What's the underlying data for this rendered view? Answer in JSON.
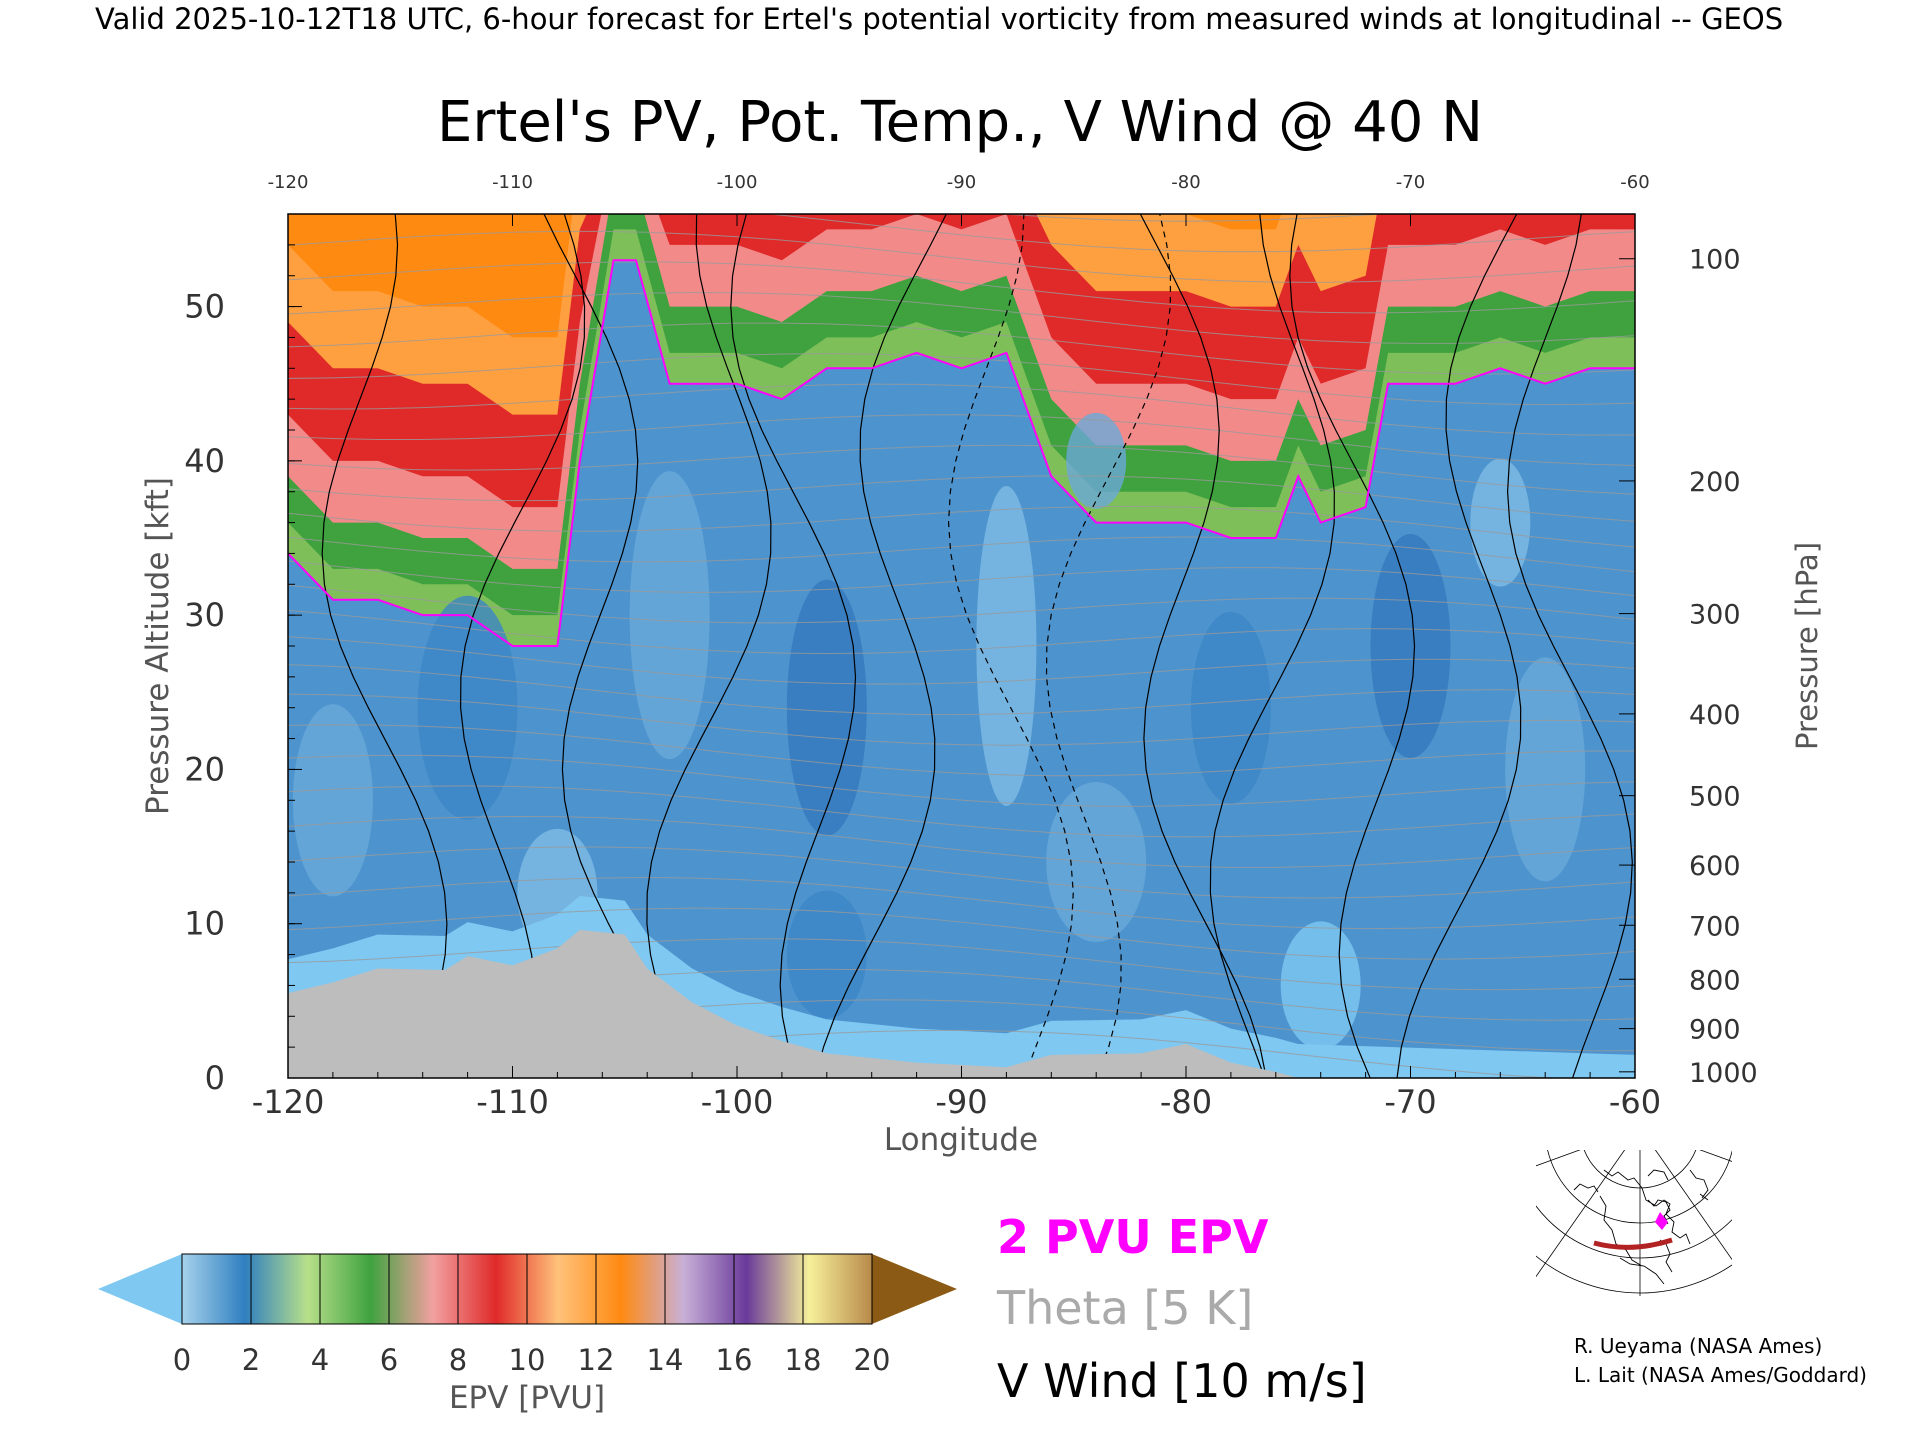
{
  "header": {
    "valid_line": "Valid 2025-10-12T18 UTC, 6-hour forecast for Ertel's potential vorticity from measured winds at longitudinal -- GEOS"
  },
  "chart_data": {
    "type": "heatmap",
    "title": "Ertel's PV, Pot. Temp., V Wind @ 40 N",
    "xlabel": "Longitude",
    "ylabel_left": "Pressure Altitude [kft]",
    "ylabel_right": "Pressure [hPa]",
    "xlim": [
      -120,
      -60
    ],
    "ylim": [
      0,
      56
    ],
    "x_ticks": [
      "-120",
      "-110",
      "-100",
      "-90",
      "-80",
      "-70",
      "-60"
    ],
    "x_ticks_top": [
      "-120",
      "-110",
      "-100",
      "-90",
      "-80",
      "-70",
      "-60"
    ],
    "y_ticks": [
      "0",
      "10",
      "20",
      "30",
      "40",
      "50"
    ],
    "pressure_ticks": [
      {
        "p": 1000,
        "kft": 0.4
      },
      {
        "p": 900,
        "kft": 3.2
      },
      {
        "p": 800,
        "kft": 6.4
      },
      {
        "p": 700,
        "kft": 9.9
      },
      {
        "p": 600,
        "kft": 13.8
      },
      {
        "p": 500,
        "kft": 18.3
      },
      {
        "p": 400,
        "kft": 23.6
      },
      {
        "p": 300,
        "kft": 30.1
      },
      {
        "p": 200,
        "kft": 38.7
      },
      {
        "p": 100,
        "kft": 53.1
      }
    ],
    "grid": false,
    "tropopause_2pvu_kft": [
      {
        "lon": -120,
        "kft": 34
      },
      {
        "lon": -118,
        "kft": 31
      },
      {
        "lon": -116,
        "kft": 31
      },
      {
        "lon": -114,
        "kft": 30
      },
      {
        "lon": -112,
        "kft": 30
      },
      {
        "lon": -110,
        "kft": 28
      },
      {
        "lon": -108,
        "kft": 28
      },
      {
        "lon": -107,
        "kft": 40
      },
      {
        "lon": -105.5,
        "kft": 53
      },
      {
        "lon": -104.5,
        "kft": 53
      },
      {
        "lon": -103,
        "kft": 45
      },
      {
        "lon": -100,
        "kft": 45
      },
      {
        "lon": -98,
        "kft": 44
      },
      {
        "lon": -96,
        "kft": 46
      },
      {
        "lon": -94,
        "kft": 46
      },
      {
        "lon": -92,
        "kft": 47
      },
      {
        "lon": -90,
        "kft": 46
      },
      {
        "lon": -88,
        "kft": 47
      },
      {
        "lon": -86,
        "kft": 39
      },
      {
        "lon": -84,
        "kft": 36
      },
      {
        "lon": -82,
        "kft": 36
      },
      {
        "lon": -80,
        "kft": 36
      },
      {
        "lon": -78,
        "kft": 35
      },
      {
        "lon": -76,
        "kft": 35
      },
      {
        "lon": -75,
        "kft": 39
      },
      {
        "lon": -74,
        "kft": 36
      },
      {
        "lon": -72,
        "kft": 37
      },
      {
        "lon": -71,
        "kft": 45
      },
      {
        "lon": -68,
        "kft": 45
      },
      {
        "lon": -66,
        "kft": 46
      },
      {
        "lon": -64,
        "kft": 45
      },
      {
        "lon": -62,
        "kft": 46
      },
      {
        "lon": -60,
        "kft": 46
      }
    ],
    "terrain_kft": [
      {
        "lon": -120,
        "kft": 5.5
      },
      {
        "lon": -118,
        "kft": 6.2
      },
      {
        "lon": -116,
        "kft": 7.1
      },
      {
        "lon": -113,
        "kft": 7.0
      },
      {
        "lon": -112,
        "kft": 7.9
      },
      {
        "lon": -110,
        "kft": 7.3
      },
      {
        "lon": -108,
        "kft": 8.4
      },
      {
        "lon": -107,
        "kft": 9.6
      },
      {
        "lon": -105,
        "kft": 9.3
      },
      {
        "lon": -104,
        "kft": 7.1
      },
      {
        "lon": -102,
        "kft": 4.9
      },
      {
        "lon": -100,
        "kft": 3.4
      },
      {
        "lon": -98,
        "kft": 2.4
      },
      {
        "lon": -96,
        "kft": 1.6
      },
      {
        "lon": -92,
        "kft": 1.0
      },
      {
        "lon": -88,
        "kft": 0.7
      },
      {
        "lon": -86,
        "kft": 1.5
      },
      {
        "lon": -82,
        "kft": 1.6
      },
      {
        "lon": -80,
        "kft": 2.2
      },
      {
        "lon": -78,
        "kft": 1.0
      },
      {
        "lon": -76,
        "kft": 0.4
      },
      {
        "lon": -75,
        "kft": 0.0
      }
    ],
    "colorbar": {
      "label": "EPV [PVU]",
      "ticks": [
        "0",
        "2",
        "4",
        "6",
        "8",
        "10",
        "12",
        "14",
        "16",
        "18",
        "20"
      ],
      "below_color": "#7ec8f2",
      "above_color": "#8b5a14",
      "colors": [
        "#a6d2ec",
        "#2f7fc0",
        "#b8e08a",
        "#3fa23f",
        "#f2a0a0",
        "#e02a2a",
        "#ffc27a",
        "#ff8a12",
        "#c8b0d8",
        "#6a3a9a",
        "#f6f09a",
        "#b88a4a"
      ]
    }
  },
  "legend": {
    "epv_label": "2 PVU EPV",
    "epv_color": "#ff00ff",
    "theta_label": "Theta [5 K]",
    "theta_color": "#aaaaaa",
    "vwind_label": "V Wind [10 m/s]"
  },
  "credits": {
    "line1": "R. Ueyama (NASA Ames)",
    "line2": "L. Lait (NASA Ames/Goddard)"
  },
  "inset_map": {
    "label": "",
    "section_color": "#b22222",
    "marker_color": "#ff00ff"
  }
}
